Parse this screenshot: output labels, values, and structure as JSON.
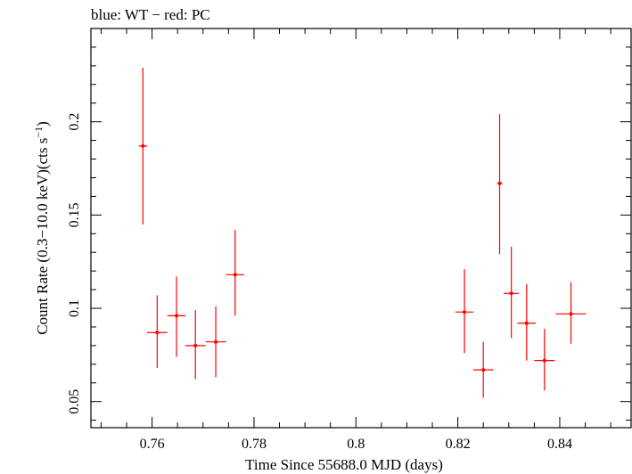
{
  "chart_data": {
    "type": "scatter",
    "title": "blue: WT − red: PC",
    "xlabel": "Time Since 55688.0 MJD (days)",
    "ylabel_main": "Count Rate (0.3−10.0 keV)(cts s",
    "ylabel_sup": "−1",
    "ylabel_end": ")",
    "xlim": [
      0.748,
      0.854
    ],
    "ylim": [
      0.036,
      0.25
    ],
    "x_ticks": [
      0.76,
      0.78,
      0.8,
      0.82,
      0.84
    ],
    "x_tick_labels": [
      "0.76",
      "0.78",
      "0.8",
      "0.82",
      "0.84"
    ],
    "y_ticks": [
      0.05,
      0.1,
      0.15,
      0.2
    ],
    "y_tick_labels": [
      "0.05",
      "0.1",
      "0.15",
      "0.2"
    ],
    "grid": false,
    "series": [
      {
        "color": "#ff0000",
        "points": [
          {
            "x": 0.7582,
            "xerr": 0.0008,
            "y": 0.187,
            "ylo": 0.145,
            "yhi": 0.229
          },
          {
            "x": 0.761,
            "xerr": 0.002,
            "y": 0.087,
            "ylo": 0.068,
            "yhi": 0.107
          },
          {
            "x": 0.7648,
            "xerr": 0.0018,
            "y": 0.096,
            "ylo": 0.074,
            "yhi": 0.117
          },
          {
            "x": 0.7685,
            "xerr": 0.002,
            "y": 0.08,
            "ylo": 0.062,
            "yhi": 0.099
          },
          {
            "x": 0.7725,
            "xerr": 0.002,
            "y": 0.082,
            "ylo": 0.063,
            "yhi": 0.101
          },
          {
            "x": 0.7763,
            "xerr": 0.0018,
            "y": 0.118,
            "ylo": 0.096,
            "yhi": 0.142
          },
          {
            "x": 0.8213,
            "xerr": 0.0018,
            "y": 0.098,
            "ylo": 0.076,
            "yhi": 0.121
          },
          {
            "x": 0.825,
            "xerr": 0.002,
            "y": 0.067,
            "ylo": 0.052,
            "yhi": 0.082
          },
          {
            "x": 0.8282,
            "xerr": 0.0005,
            "y": 0.167,
            "ylo": 0.129,
            "yhi": 0.204
          },
          {
            "x": 0.8305,
            "xerr": 0.0015,
            "y": 0.108,
            "ylo": 0.084,
            "yhi": 0.133
          },
          {
            "x": 0.8335,
            "xerr": 0.0018,
            "y": 0.092,
            "ylo": 0.072,
            "yhi": 0.113
          },
          {
            "x": 0.837,
            "xerr": 0.002,
            "y": 0.072,
            "ylo": 0.056,
            "yhi": 0.089
          },
          {
            "x": 0.8422,
            "xerr": 0.003,
            "y": 0.097,
            "ylo": 0.081,
            "yhi": 0.114
          }
        ]
      }
    ]
  }
}
